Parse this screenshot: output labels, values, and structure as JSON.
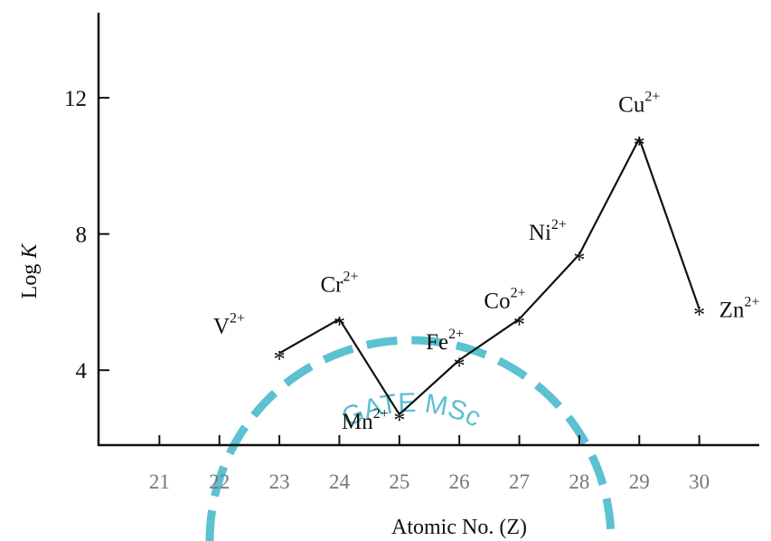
{
  "chart_data": {
    "type": "line",
    "title": "",
    "xlabel": "Atomic No. (Z)",
    "ylabel_prefix": "Log ",
    "ylabel_italic": "K",
    "xlim": [
      20.0,
      31.0
    ],
    "ylim": [
      1.8,
      14.5
    ],
    "xticks": [
      21,
      22,
      23,
      24,
      25,
      26,
      27,
      28,
      29,
      30
    ],
    "x_tick_labels": [
      "21",
      "22",
      "23",
      "24",
      "25",
      "26",
      "27",
      "28",
      "29",
      "30"
    ],
    "yticks": [
      4,
      8,
      12
    ],
    "y_tick_labels": [
      "4",
      "8",
      "12"
    ],
    "grid": false,
    "marker": "*",
    "points": [
      {
        "x": 23,
        "y": 4.5,
        "ion": "V",
        "charge": "2+"
      },
      {
        "x": 24,
        "y": 5.5,
        "ion": "Cr",
        "charge": "2+"
      },
      {
        "x": 25,
        "y": 2.7,
        "ion": "Mn",
        "charge": "2+"
      },
      {
        "x": 26,
        "y": 4.3,
        "ion": "Fe",
        "charge": "2+"
      },
      {
        "x": 27,
        "y": 5.5,
        "ion": "Co",
        "charge": "2+"
      },
      {
        "x": 28,
        "y": 7.4,
        "ion": "Ni",
        "charge": "2+"
      },
      {
        "x": 29,
        "y": 10.8,
        "ion": "Cu",
        "charge": "2+"
      },
      {
        "x": 30,
        "y": 5.8,
        "ion": "Zn",
        "charge": "2+"
      }
    ],
    "connected_x_range": [
      23,
      30
    ]
  },
  "watermark": {
    "text": "GATE MSc",
    "color": "#3fb6c9"
  }
}
